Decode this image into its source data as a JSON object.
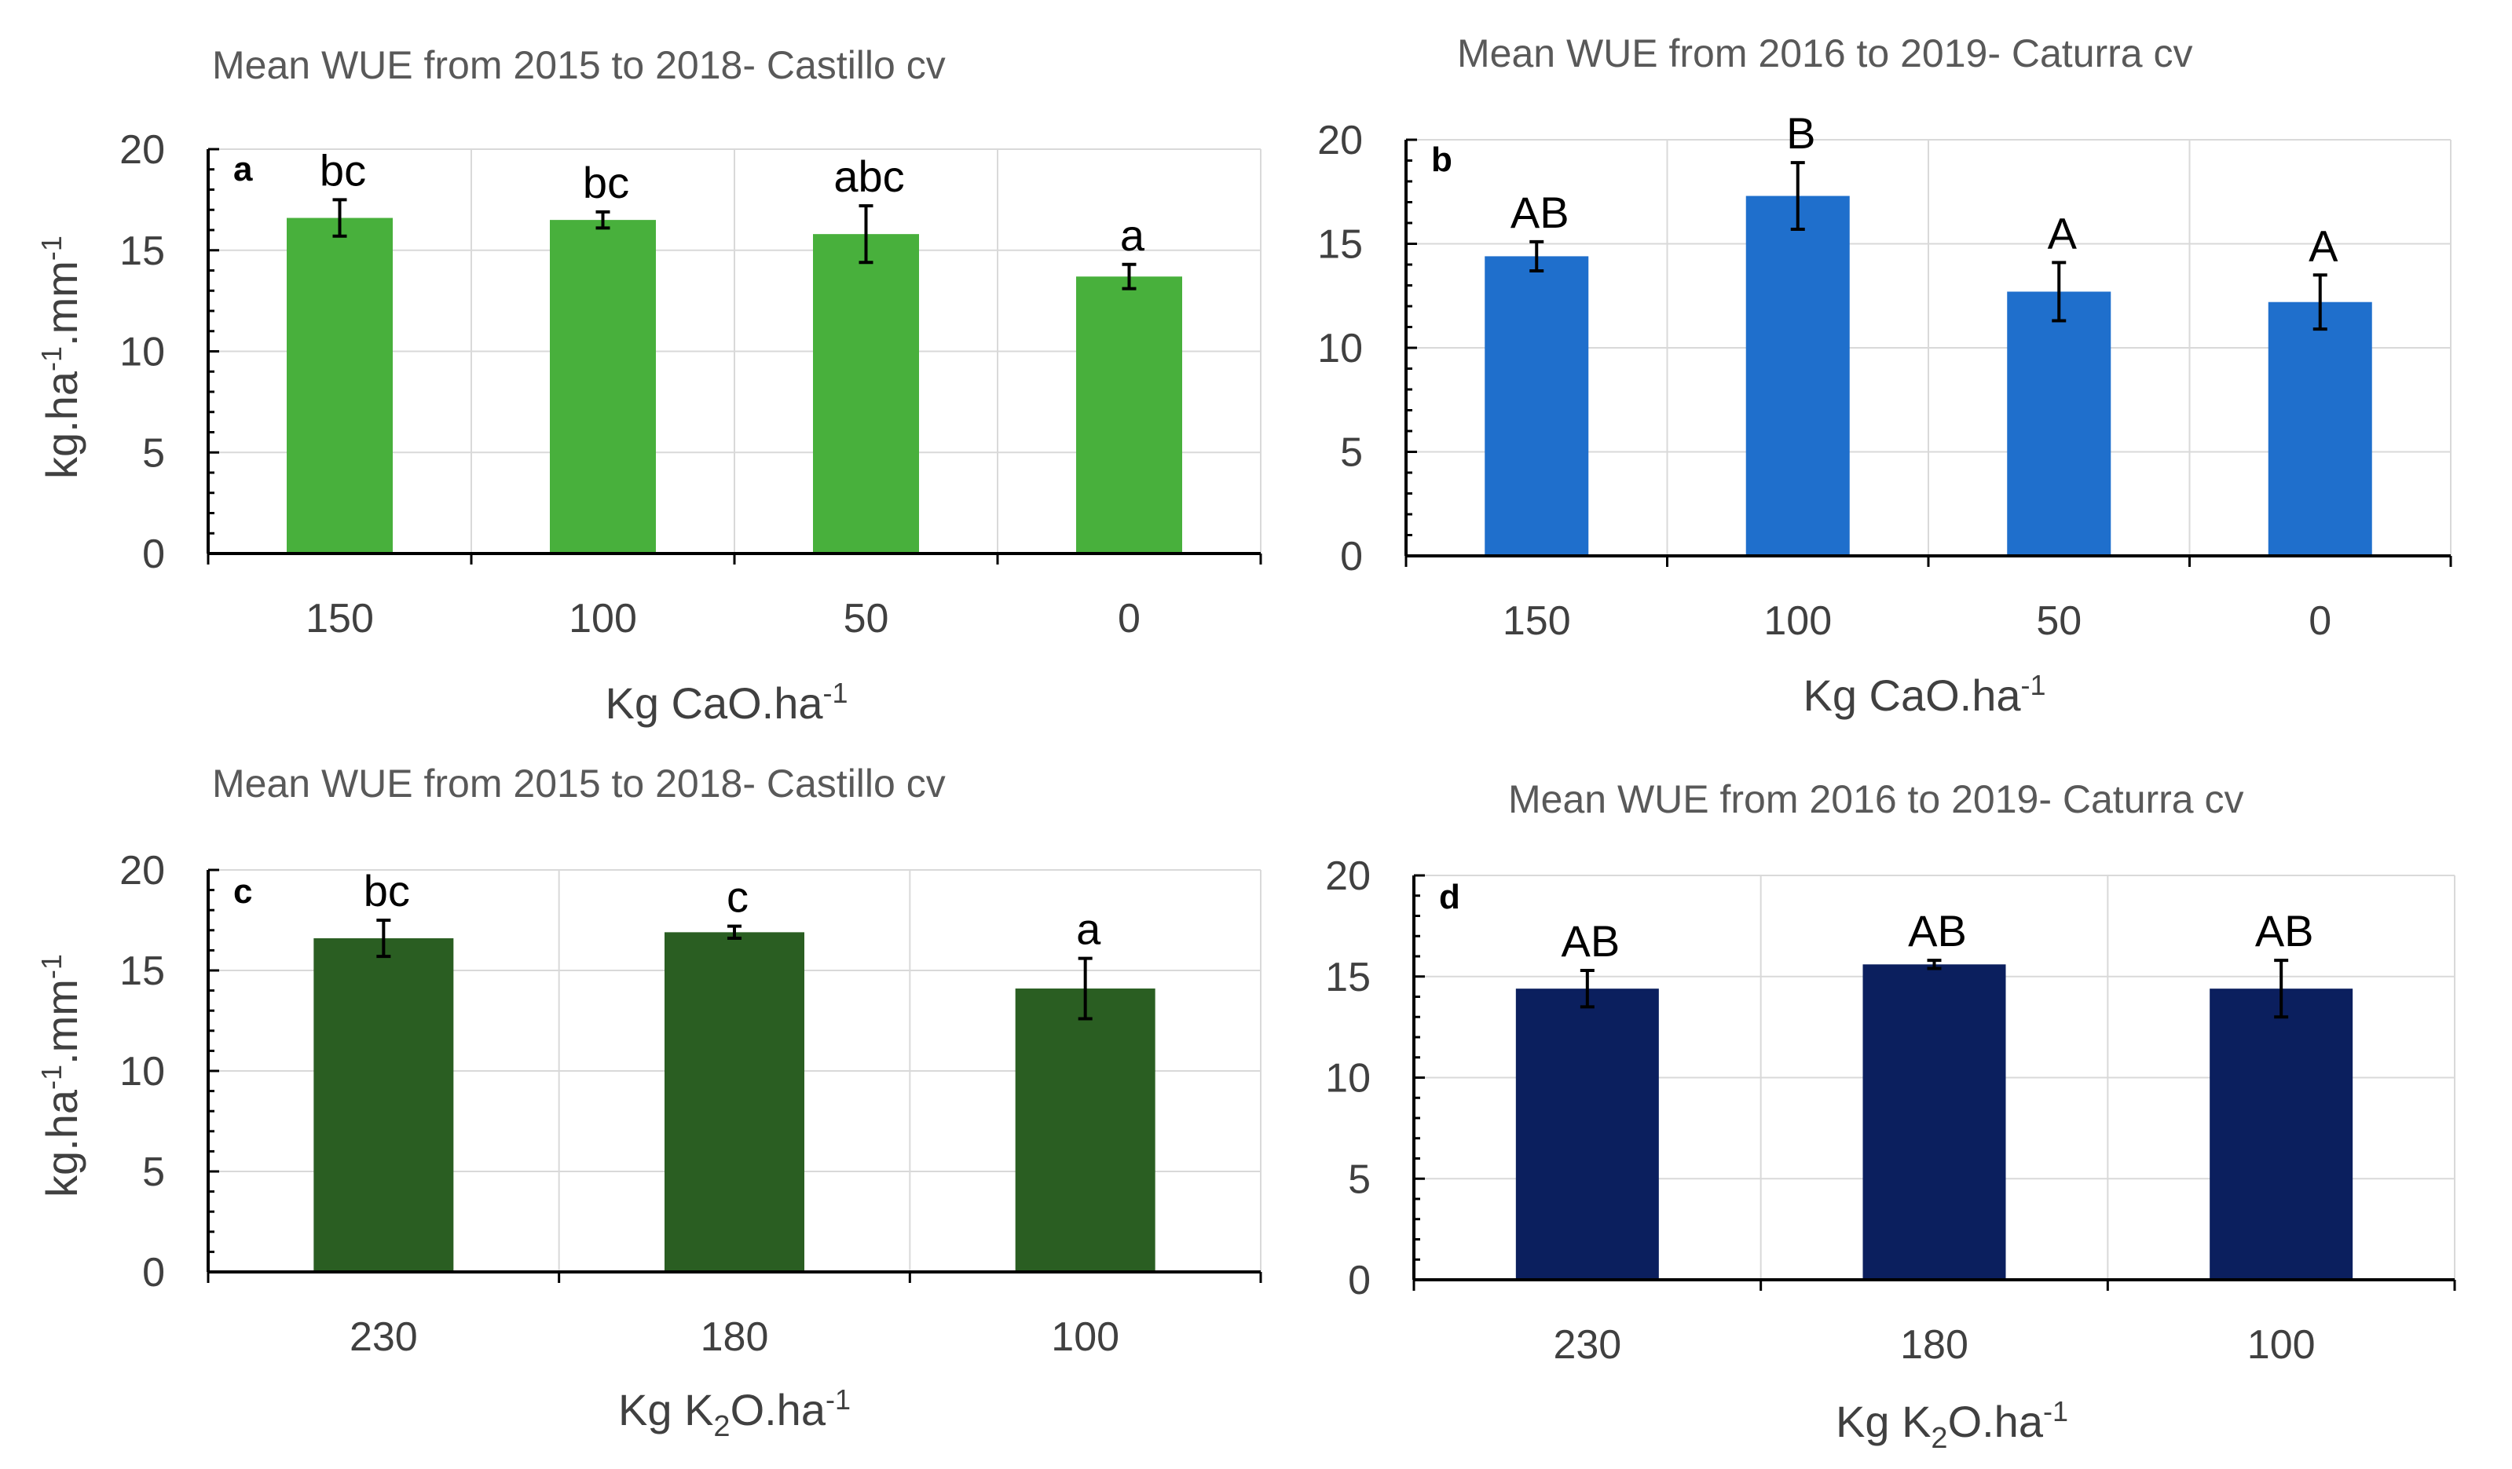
{
  "chart_data": [
    {
      "type": "bar",
      "panel_label": "a",
      "title": "Mean WUE from 2015 to 2018- Castillo cv",
      "ylabel": "kg.ha-1.mm-1",
      "ylabel_parts": [
        "kg.ha",
        "-1",
        ".mm",
        "-1"
      ],
      "xlabel": "Kg CaO.ha-1",
      "xlabel_parts": [
        "Kg CaO.ha",
        "-1"
      ],
      "categories": [
        "150",
        "100",
        "50",
        "0"
      ],
      "values": [
        16.6,
        16.5,
        15.8,
        13.7
      ],
      "errors": [
        0.9,
        0.4,
        1.4,
        0.6
      ],
      "significance": [
        "bc",
        "bc",
        "abc",
        "a"
      ],
      "ylim": [
        0,
        20
      ],
      "yticks": [
        "0",
        "5",
        "10",
        "15",
        "20"
      ],
      "color": "#48b03c"
    },
    {
      "type": "bar",
      "panel_label": "b",
      "title": "Mean WUE from 2016 to 2019- Caturra cv",
      "ylabel": "",
      "xlabel": "Kg CaO.ha-1",
      "xlabel_parts": [
        "Kg CaO.ha",
        "-1"
      ],
      "categories": [
        "150",
        "100",
        "50",
        "0"
      ],
      "values": [
        14.4,
        17.3,
        12.7,
        12.2
      ],
      "errors": [
        0.7,
        1.6,
        1.4,
        1.3
      ],
      "significance": [
        "AB",
        "B",
        "A",
        "A"
      ],
      "ylim": [
        0,
        20
      ],
      "yticks": [
        "0",
        "5",
        "10",
        "15",
        "20"
      ],
      "color": "#1f6fcc"
    },
    {
      "type": "bar",
      "panel_label": "c",
      "title": "Mean WUE from 2015 to 2018- Castillo cv",
      "ylabel": "kg.ha-1.mm-1",
      "ylabel_parts": [
        "kg.ha",
        "-1",
        ".mm",
        "-1"
      ],
      "xlabel": "Kg K2O.ha-1",
      "xlabel_parts": [
        "Kg K",
        "2",
        "O.ha",
        "-1"
      ],
      "categories": [
        "230",
        "180",
        "100"
      ],
      "values": [
        16.6,
        16.9,
        14.1
      ],
      "errors": [
        0.9,
        0.3,
        1.5
      ],
      "significance": [
        "bc",
        "c",
        "a"
      ],
      "ylim": [
        0,
        20
      ],
      "yticks": [
        "0",
        "5",
        "10",
        "15",
        "20"
      ],
      "color": "#2a5e22"
    },
    {
      "type": "bar",
      "panel_label": "d",
      "title": "Mean WUE from 2016 to 2019- Caturra cv",
      "ylabel": "",
      "xlabel": "Kg K2O.ha-1",
      "xlabel_parts": [
        "Kg K",
        "2",
        "O.ha",
        "-1"
      ],
      "categories": [
        "230",
        "180",
        "100"
      ],
      "values": [
        14.4,
        15.6,
        14.4
      ],
      "errors": [
        0.9,
        0.2,
        1.4
      ],
      "significance": [
        "AB",
        "AB",
        "AB"
      ],
      "ylim": [
        0,
        20
      ],
      "yticks": [
        "0",
        "5",
        "10",
        "15",
        "20"
      ],
      "color": "#0b1f5e"
    }
  ]
}
